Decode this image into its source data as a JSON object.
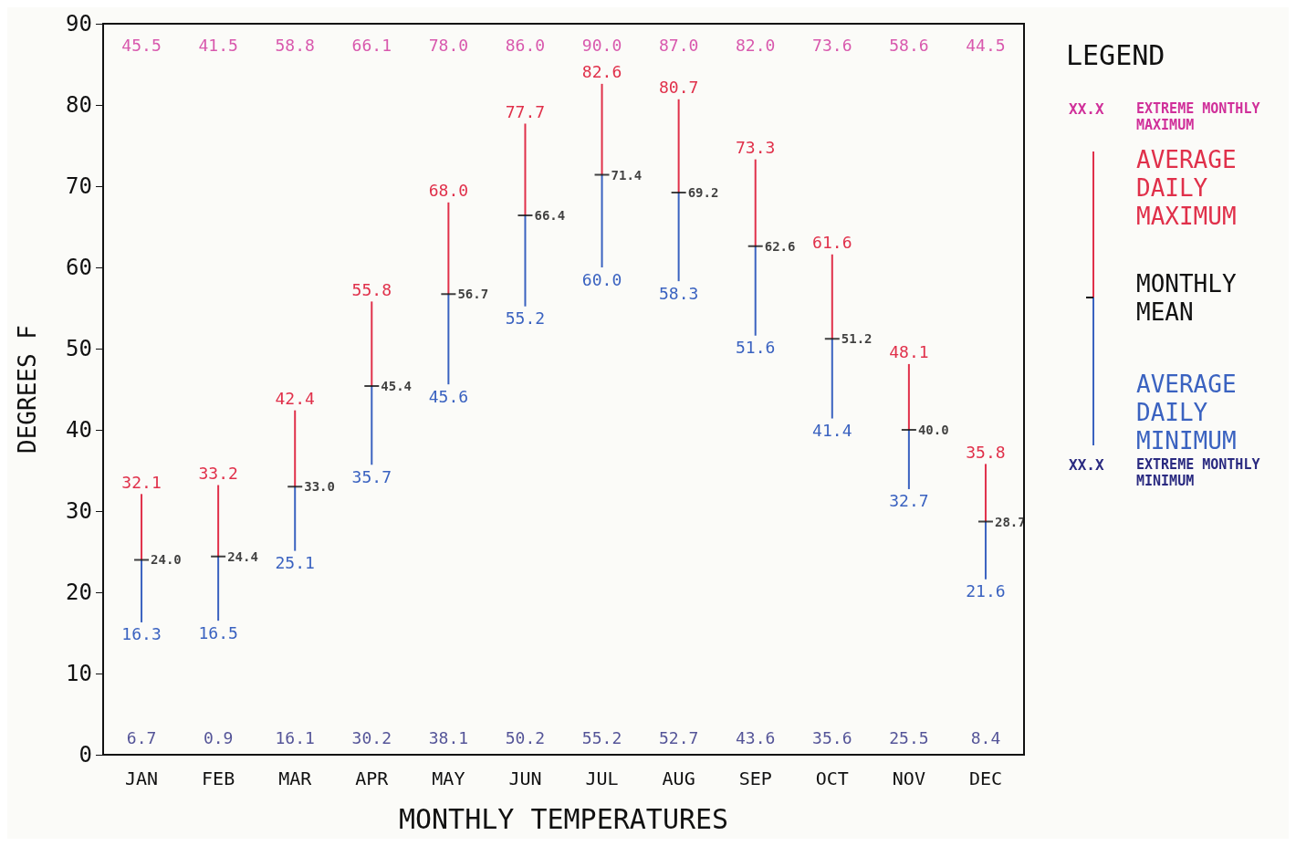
{
  "chart_data": {
    "type": "bar",
    "xlabel": "MONTHLY TEMPERATURES",
    "ylabel": "DEGREES F",
    "legend_title": "LEGEND",
    "legend": "right",
    "grid": false,
    "categories": [
      "JAN",
      "FEB",
      "MAR",
      "APR",
      "MAY",
      "JUN",
      "JUL",
      "AUG",
      "SEP",
      "OCT",
      "NOV",
      "DEC"
    ],
    "ylim": [
      0,
      90
    ],
    "yticks": [
      0,
      10,
      20,
      30,
      40,
      50,
      60,
      70,
      80,
      90
    ],
    "series": [
      {
        "name": "AVERAGE DAILY MAXIMUM",
        "color": "#e0304a",
        "base": [
          24.0,
          24.4,
          33.0,
          45.4,
          56.7,
          66.4,
          71.4,
          69.2,
          62.6,
          51.2,
          40.0,
          28.7
        ],
        "values": [
          8.1,
          8.8,
          9.4,
          10.4,
          11.3,
          11.3,
          11.2,
          11.5,
          10.7,
          10.4,
          8.1,
          7.1
        ],
        "value_labels": [
          "32.1",
          "33.2",
          "42.4",
          "55.8",
          "68.0",
          "77.7",
          "82.6",
          "80.7",
          "73.3",
          "61.6",
          "48.1",
          "35.8"
        ]
      },
      {
        "name": "MONTHLY MEAN",
        "type": "scatter",
        "color": "#111111",
        "values": [
          24.0,
          24.4,
          33.0,
          45.4,
          56.7,
          66.4,
          71.4,
          69.2,
          62.6,
          51.2,
          40.0,
          28.7
        ],
        "value_labels": [
          "24.0",
          "24.4",
          "33.0",
          "45.4",
          "56.7",
          "66.4",
          "71.4",
          "69.2",
          "62.6",
          "51.2",
          "40.0",
          "28.7"
        ]
      },
      {
        "name": "AVERAGE DAILY MINIMUM",
        "color": "#3a62c0",
        "base": [
          24.0,
          24.4,
          33.0,
          45.4,
          56.7,
          66.4,
          71.4,
          69.2,
          62.6,
          51.2,
          40.0,
          28.7
        ],
        "values": [
          -7.7,
          -7.9,
          -7.9,
          -9.7,
          -11.1,
          -11.2,
          -11.4,
          -10.9,
          -11.0,
          -9.8,
          -7.3,
          -7.1
        ],
        "value_labels": [
          "16.3",
          "16.5",
          "25.1",
          "35.7",
          "45.6",
          "55.2",
          "60.0",
          "58.3",
          "51.6",
          "41.4",
          "32.7",
          "21.6"
        ]
      }
    ],
    "annotations": [
      "45.5",
      "41.5",
      "58.8",
      "66.1",
      "78.0",
      "86.0",
      "90.0",
      "87.0",
      "82.0",
      "73.6",
      "58.6",
      "44.5",
      "6.7",
      "0.9",
      "16.1",
      "30.2",
      "38.1",
      "50.2",
      "55.2",
      "52.7",
      "43.6",
      "35.6",
      "25.5",
      "8.4",
      "XX.X",
      "EXTREME MONTHLY MAXIMUM",
      "XX.X",
      "EXTREME MONTHLY MINIMUM"
    ]
  }
}
